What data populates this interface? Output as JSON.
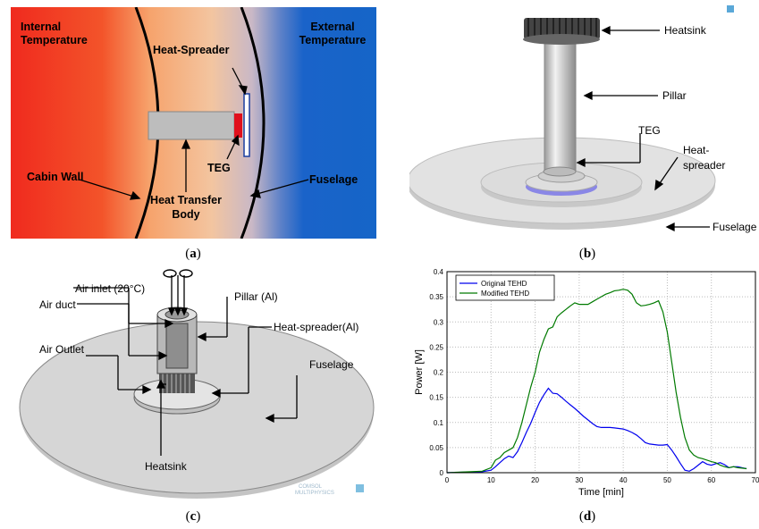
{
  "panel_a": {
    "caption": "a",
    "labels": {
      "internal_temp": [
        "Internal",
        "Temperature"
      ],
      "external_temp": [
        "External",
        "Temperature"
      ],
      "heat_spreader": "Heat-Spreader",
      "teg": "TEG",
      "cabin_wall": "Cabin Wall",
      "heat_transfer_body": [
        "Heat Transfer",
        "Body"
      ],
      "fuselage": "Fuselage"
    }
  },
  "panel_b": {
    "caption": "b",
    "labels": {
      "heatsink": "Heatsink",
      "pillar": "Pillar",
      "teg": "TEG",
      "heat_spreader": [
        "Heat-",
        "spreader"
      ],
      "fuselage": "Fuselage"
    }
  },
  "panel_c": {
    "caption": "c",
    "labels": {
      "air_inlet": "Air inlet (20°C)",
      "air_duct": "Air duct",
      "pillar": "Pillar (Al)",
      "heat_spreader": "Heat-spreader(Al)",
      "air_outlet": "Air Outlet",
      "fuselage": "Fuselage",
      "heatsink": "Heatsink"
    },
    "watermark": [
      "COMSOL",
      "MULTIPHYSICS"
    ]
  },
  "panel_d": {
    "caption": "d"
  },
  "chart_data": {
    "type": "line",
    "xlabel": "Time [min]",
    "ylabel": "Power [W]",
    "xlim": [
      0,
      70
    ],
    "ylim": [
      0,
      0.4
    ],
    "xticks": [
      0,
      10,
      20,
      30,
      40,
      50,
      60,
      70
    ],
    "yticks": [
      0,
      0.05,
      0.1,
      0.15,
      0.2,
      0.25,
      0.3,
      0.35,
      0.4
    ],
    "grid": true,
    "legend_position": "top-left",
    "series": [
      {
        "name": "Original TEHD",
        "color": "#0000ee",
        "x": [
          0,
          8,
          10,
          11,
          12,
          13,
          14,
          15,
          16,
          17,
          18,
          19,
          20,
          21,
          22,
          23,
          24,
          25,
          26,
          27,
          28,
          29,
          30,
          31,
          32,
          33,
          34,
          35,
          36,
          37,
          38,
          39,
          40,
          41,
          42,
          43,
          44,
          45,
          46,
          47,
          48,
          49,
          50,
          51,
          52,
          53,
          54,
          55,
          56,
          57,
          58,
          59,
          60,
          61,
          62,
          63,
          64,
          65,
          66,
          67,
          68
        ],
        "y": [
          0,
          0.002,
          0.005,
          0.012,
          0.02,
          0.028,
          0.033,
          0.03,
          0.042,
          0.06,
          0.08,
          0.098,
          0.12,
          0.14,
          0.155,
          0.168,
          0.158,
          0.157,
          0.15,
          0.142,
          0.135,
          0.128,
          0.12,
          0.112,
          0.105,
          0.098,
          0.092,
          0.09,
          0.09,
          0.09,
          0.089,
          0.088,
          0.087,
          0.084,
          0.08,
          0.075,
          0.068,
          0.06,
          0.057,
          0.056,
          0.055,
          0.055,
          0.056,
          0.045,
          0.032,
          0.018,
          0.005,
          0.003,
          0.008,
          0.015,
          0.022,
          0.017,
          0.015,
          0.018,
          0.02,
          0.016,
          0.01,
          0.012,
          0.012,
          0.01,
          0.008
        ]
      },
      {
        "name": "Modified TEHD",
        "color": "#007a00",
        "x": [
          0,
          8,
          10,
          11,
          12,
          13,
          14,
          15,
          16,
          17,
          18,
          19,
          20,
          21,
          22,
          23,
          24,
          25,
          26,
          27,
          28,
          29,
          30,
          31,
          32,
          33,
          34,
          35,
          36,
          37,
          38,
          39,
          40,
          41,
          42,
          43,
          44,
          45,
          46,
          47,
          48,
          49,
          50,
          51,
          52,
          53,
          54,
          55,
          56,
          57,
          58,
          59,
          60,
          61,
          62,
          63,
          64,
          65,
          66,
          67,
          68
        ],
        "y": [
          0,
          0.003,
          0.01,
          0.025,
          0.03,
          0.04,
          0.045,
          0.05,
          0.07,
          0.1,
          0.135,
          0.17,
          0.2,
          0.24,
          0.265,
          0.286,
          0.29,
          0.31,
          0.318,
          0.325,
          0.332,
          0.338,
          0.335,
          0.335,
          0.335,
          0.34,
          0.345,
          0.35,
          0.355,
          0.358,
          0.362,
          0.363,
          0.365,
          0.363,
          0.355,
          0.338,
          0.332,
          0.333,
          0.335,
          0.338,
          0.342,
          0.32,
          0.28,
          0.22,
          0.16,
          0.11,
          0.07,
          0.045,
          0.035,
          0.03,
          0.028,
          0.025,
          0.022,
          0.02,
          0.015,
          0.012,
          0.01,
          0.012,
          0.01,
          0.009,
          0.008
        ]
      }
    ]
  }
}
